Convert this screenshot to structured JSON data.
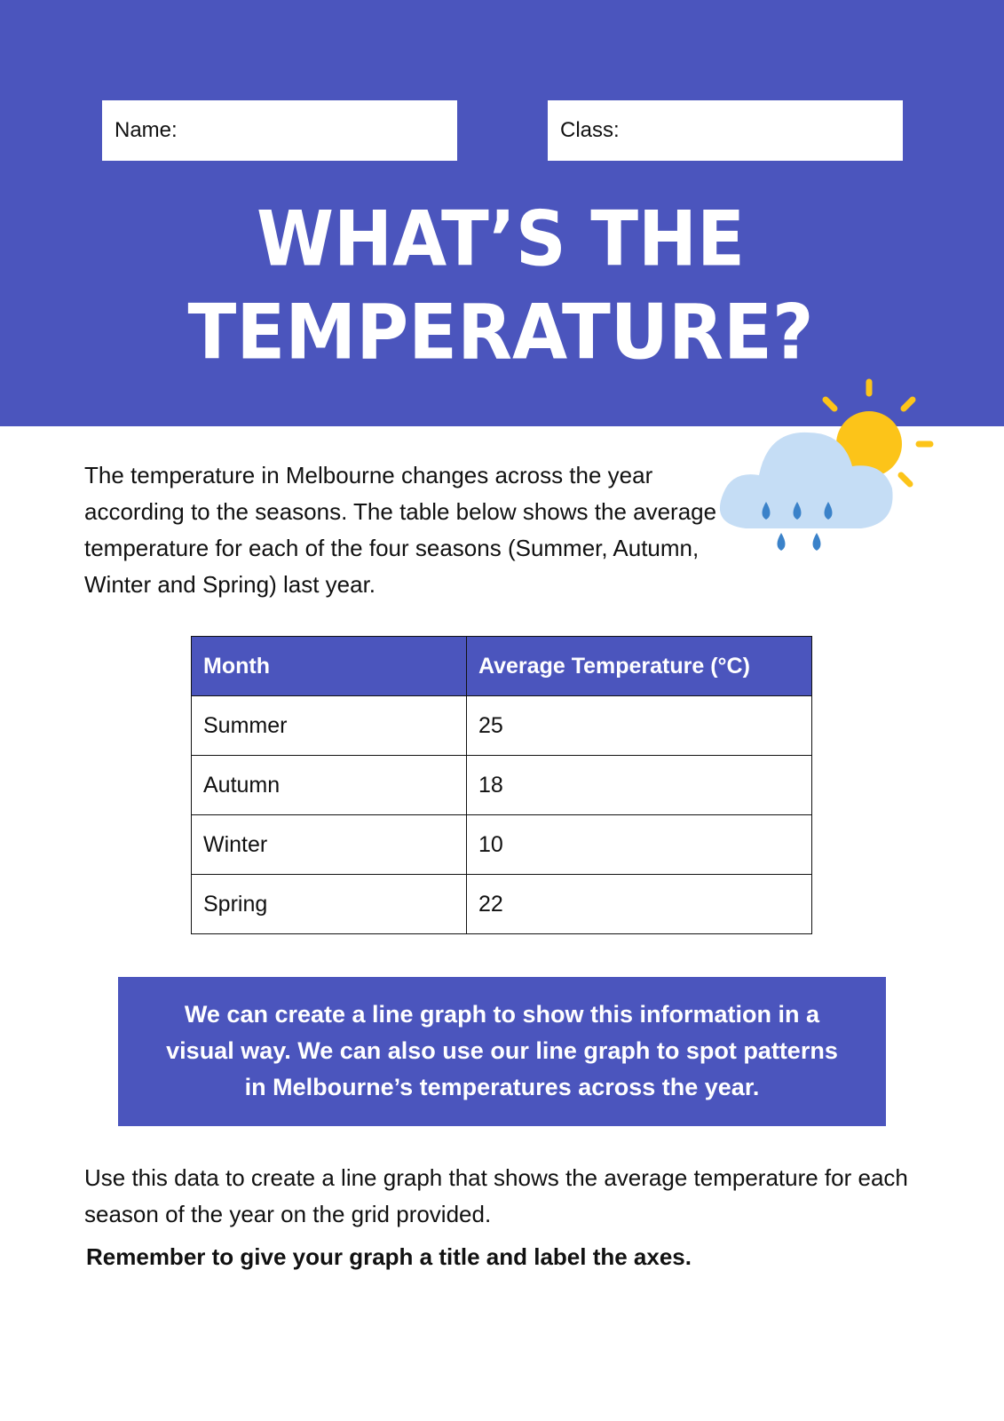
{
  "header": {
    "name_label": "Name:",
    "class_label": "Class:",
    "title_line1": "WHAT’S THE",
    "title_line2": "TEMPERATURE?"
  },
  "intro": "The temperature in Melbourne changes across the year according to the seasons. The table below shows the average temperature for each of the four seasons (Summer, Autumn, Winter and Spring) last year.",
  "table": {
    "columns": [
      "Month",
      "Average Temperature (°C)"
    ],
    "rows": [
      [
        "Summer",
        25
      ],
      [
        "Autumn",
        18
      ],
      [
        "Winter",
        10
      ],
      [
        "Spring",
        22
      ]
    ]
  },
  "callout": "We can create a line graph to show this information in a visual way. We can also use our line graph to spot patterns in Melbourne’s temperatures across the year.",
  "instruction": "Use this data to create a line graph that shows the average temperature for each season of the year on the grid provided.",
  "reminder": "Remember to give your graph a title and label the axes."
}
